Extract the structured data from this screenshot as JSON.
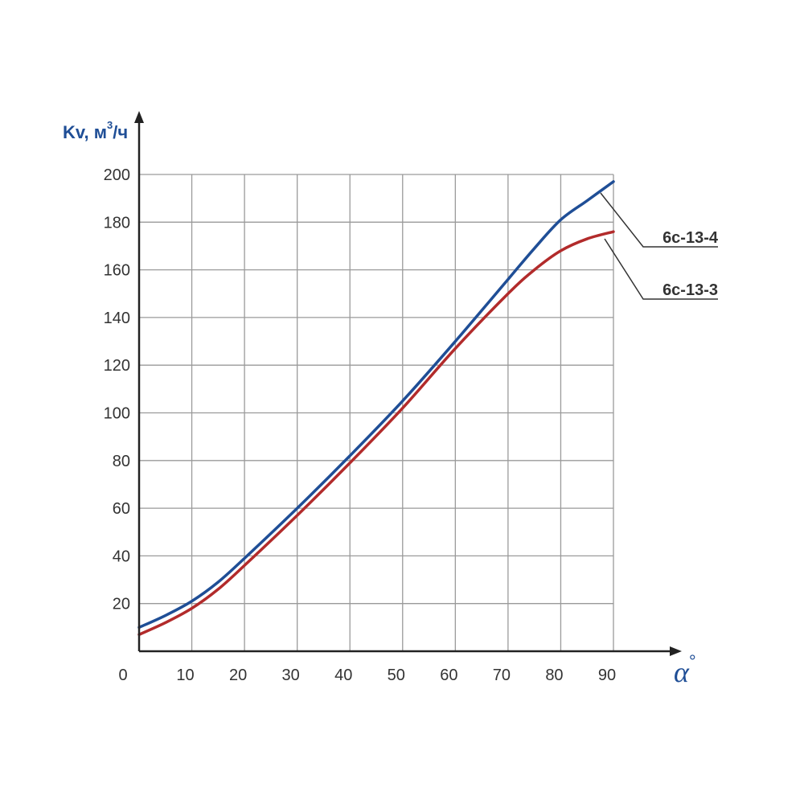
{
  "chart_data": {
    "type": "line",
    "ylabel": "Kv, м",
    "ylabel_sup": "3",
    "ylabel_tail": "/ч",
    "xlabel": "α",
    "xlabel_sup": "°",
    "origin_label": "0",
    "xlim": [
      0,
      90
    ],
    "ylim": [
      0,
      200
    ],
    "x_ticks": [
      "10",
      "20",
      "30",
      "40",
      "50",
      "60",
      "70",
      "80",
      "90"
    ],
    "y_ticks": [
      "20",
      "40",
      "60",
      "80",
      "100",
      "120",
      "140",
      "160",
      "180",
      "200"
    ],
    "grid": true,
    "series": [
      {
        "name": "6с-13-4",
        "color": "#1f4e96",
        "x": [
          0,
          5,
          10,
          15,
          20,
          30,
          40,
          50,
          60,
          70,
          75,
          80,
          85,
          90
        ],
        "y": [
          10,
          15,
          21,
          29,
          39,
          60,
          82,
          105,
          130,
          156,
          169,
          181,
          189,
          197
        ]
      },
      {
        "name": "6с-13-3",
        "color": "#b22b2b",
        "x": [
          0,
          5,
          10,
          15,
          20,
          30,
          40,
          50,
          60,
          70,
          75,
          80,
          85,
          90
        ],
        "y": [
          7,
          12,
          18,
          26,
          36,
          57,
          79,
          102,
          127,
          150,
          160,
          168,
          173,
          176
        ]
      }
    ]
  },
  "colors": {
    "grid": "#9a9a9a",
    "axis": "#222222",
    "label": "#1f4e96",
    "text": "#333333"
  }
}
